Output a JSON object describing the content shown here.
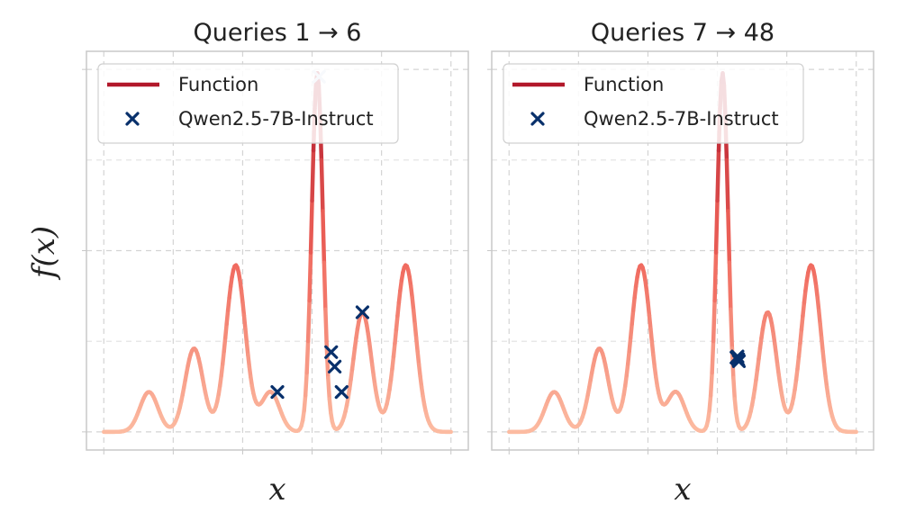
{
  "ylabel": "f(x)",
  "chart_data": [
    {
      "type": "line",
      "title": "Queries 1 → 6",
      "xlabel": "x",
      "ylabel": "f(x)",
      "xlim": [
        -0.05,
        1.05
      ],
      "ylim": [
        -0.05,
        1.05
      ],
      "grid": true,
      "legend_position": "top-left",
      "series": [
        {
          "name": "Function",
          "kind": "line",
          "color": "#b2182b"
        },
        {
          "name": "Qwen2.5-7B-Instruct",
          "kind": "scatter",
          "marker": "x",
          "color": "#08306b",
          "points": [
            [
              0.62,
              0.98
            ],
            [
              0.5,
              0.11
            ],
            [
              0.655,
              0.22
            ],
            [
              0.665,
              0.18
            ],
            [
              0.685,
              0.11
            ],
            [
              0.745,
              0.33
            ]
          ]
        }
      ],
      "peaks": [
        [
          0.13,
          0.11
        ],
        [
          0.26,
          0.23
        ],
        [
          0.38,
          0.46
        ],
        [
          0.48,
          0.11
        ],
        [
          0.615,
          0.99
        ],
        [
          0.745,
          0.33
        ],
        [
          0.87,
          0.46
        ]
      ]
    },
    {
      "type": "line",
      "title": "Queries 7 → 48",
      "xlabel": "x",
      "ylabel": "",
      "xlim": [
        -0.05,
        1.05
      ],
      "ylim": [
        -0.05,
        1.05
      ],
      "grid": true,
      "legend_position": "top-left",
      "series": [
        {
          "name": "Function",
          "kind": "line",
          "color": "#b2182b"
        },
        {
          "name": "Qwen2.5-7B-Instruct",
          "kind": "scatter",
          "marker": "x",
          "color": "#08306b",
          "points": [
            [
              0.655,
              0.205
            ],
            [
              0.66,
              0.2
            ],
            [
              0.662,
              0.195
            ],
            [
              0.658,
              0.208
            ]
          ]
        }
      ],
      "peaks": [
        [
          0.13,
          0.11
        ],
        [
          0.26,
          0.23
        ],
        [
          0.38,
          0.46
        ],
        [
          0.48,
          0.11
        ],
        [
          0.615,
          0.99
        ],
        [
          0.745,
          0.33
        ],
        [
          0.87,
          0.46
        ]
      ]
    }
  ]
}
